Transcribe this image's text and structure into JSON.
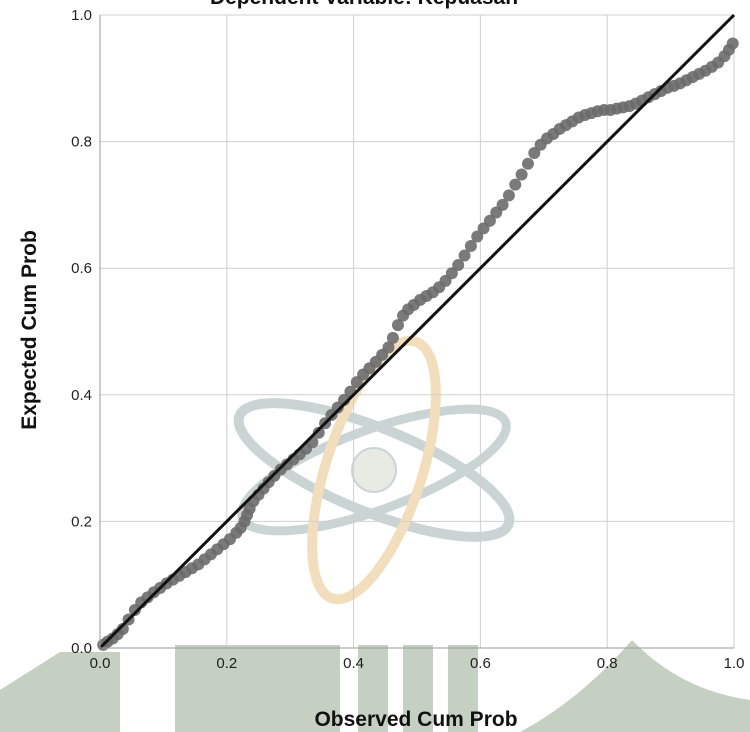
{
  "chart_data": {
    "type": "scatter",
    "title": "Dependent Variable: Kepuasan",
    "xlabel": "Observed Cum Prob",
    "ylabel": "Expected Cum Prob",
    "xlim": [
      0,
      1
    ],
    "ylim": [
      0,
      1
    ],
    "xticks": [
      "0.0",
      "0.2",
      "0.4",
      "0.6",
      "0.8",
      "1.0"
    ],
    "yticks": [
      "0.0",
      "0.2",
      "0.4",
      "0.6",
      "0.8",
      "1.0"
    ],
    "grid": true,
    "reference_line": [
      [
        0,
        0
      ],
      [
        1,
        1
      ]
    ],
    "points": [
      [
        0.005,
        0.005
      ],
      [
        0.012,
        0.01
      ],
      [
        0.02,
        0.015
      ],
      [
        0.028,
        0.022
      ],
      [
        0.036,
        0.03
      ],
      [
        0.045,
        0.045
      ],
      [
        0.055,
        0.06
      ],
      [
        0.065,
        0.072
      ],
      [
        0.075,
        0.08
      ],
      [
        0.085,
        0.088
      ],
      [
        0.095,
        0.095
      ],
      [
        0.105,
        0.102
      ],
      [
        0.115,
        0.108
      ],
      [
        0.125,
        0.114
      ],
      [
        0.135,
        0.12
      ],
      [
        0.145,
        0.126
      ],
      [
        0.155,
        0.132
      ],
      [
        0.165,
        0.14
      ],
      [
        0.175,
        0.148
      ],
      [
        0.185,
        0.156
      ],
      [
        0.195,
        0.164
      ],
      [
        0.205,
        0.172
      ],
      [
        0.215,
        0.182
      ],
      [
        0.222,
        0.19
      ],
      [
        0.228,
        0.2
      ],
      [
        0.232,
        0.21
      ],
      [
        0.236,
        0.22
      ],
      [
        0.242,
        0.232
      ],
      [
        0.25,
        0.242
      ],
      [
        0.258,
        0.252
      ],
      [
        0.266,
        0.262
      ],
      [
        0.275,
        0.272
      ],
      [
        0.285,
        0.282
      ],
      [
        0.295,
        0.29
      ],
      [
        0.305,
        0.298
      ],
      [
        0.315,
        0.306
      ],
      [
        0.325,
        0.315
      ],
      [
        0.335,
        0.325
      ],
      [
        0.345,
        0.34
      ],
      [
        0.355,
        0.355
      ],
      [
        0.365,
        0.368
      ],
      [
        0.375,
        0.38
      ],
      [
        0.385,
        0.392
      ],
      [
        0.395,
        0.405
      ],
      [
        0.405,
        0.42
      ],
      [
        0.415,
        0.432
      ],
      [
        0.425,
        0.442
      ],
      [
        0.435,
        0.452
      ],
      [
        0.445,
        0.463
      ],
      [
        0.455,
        0.475
      ],
      [
        0.462,
        0.49
      ],
      [
        0.47,
        0.51
      ],
      [
        0.478,
        0.525
      ],
      [
        0.486,
        0.535
      ],
      [
        0.495,
        0.542
      ],
      [
        0.505,
        0.55
      ],
      [
        0.515,
        0.556
      ],
      [
        0.525,
        0.562
      ],
      [
        0.535,
        0.57
      ],
      [
        0.545,
        0.58
      ],
      [
        0.555,
        0.592
      ],
      [
        0.565,
        0.605
      ],
      [
        0.575,
        0.62
      ],
      [
        0.585,
        0.635
      ],
      [
        0.595,
        0.65
      ],
      [
        0.605,
        0.663
      ],
      [
        0.615,
        0.675
      ],
      [
        0.625,
        0.688
      ],
      [
        0.635,
        0.7
      ],
      [
        0.645,
        0.715
      ],
      [
        0.655,
        0.732
      ],
      [
        0.665,
        0.748
      ],
      [
        0.675,
        0.765
      ],
      [
        0.685,
        0.782
      ],
      [
        0.695,
        0.795
      ],
      [
        0.705,
        0.805
      ],
      [
        0.715,
        0.812
      ],
      [
        0.725,
        0.82
      ],
      [
        0.735,
        0.826
      ],
      [
        0.745,
        0.832
      ],
      [
        0.755,
        0.838
      ],
      [
        0.765,
        0.842
      ],
      [
        0.775,
        0.845
      ],
      [
        0.785,
        0.848
      ],
      [
        0.795,
        0.85
      ],
      [
        0.805,
        0.85
      ],
      [
        0.815,
        0.852
      ],
      [
        0.825,
        0.854
      ],
      [
        0.835,
        0.856
      ],
      [
        0.845,
        0.86
      ],
      [
        0.855,
        0.865
      ],
      [
        0.865,
        0.87
      ],
      [
        0.875,
        0.875
      ],
      [
        0.885,
        0.88
      ],
      [
        0.895,
        0.885
      ],
      [
        0.905,
        0.888
      ],
      [
        0.915,
        0.892
      ],
      [
        0.925,
        0.897
      ],
      [
        0.935,
        0.902
      ],
      [
        0.945,
        0.907
      ],
      [
        0.955,
        0.912
      ],
      [
        0.965,
        0.918
      ],
      [
        0.975,
        0.925
      ],
      [
        0.985,
        0.935
      ],
      [
        0.992,
        0.945
      ],
      [
        0.998,
        0.955
      ]
    ]
  }
}
